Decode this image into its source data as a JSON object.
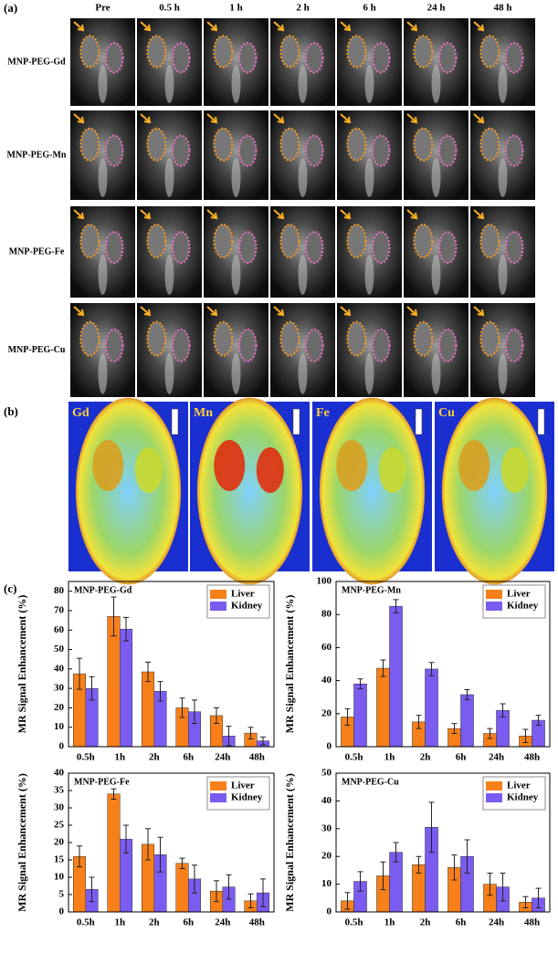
{
  "panel_a": {
    "label": "(a)",
    "columns": [
      "Pre",
      "0.5 h",
      "1 h",
      "2 h",
      "6 h",
      "24 h",
      "48 h"
    ],
    "rows": [
      "MNP-PEG-Gd",
      "MNP-PEG-Mn",
      "MNP-PEG-Fe",
      "MNP-PEG-Cu"
    ]
  },
  "panel_b": {
    "label": "(b)",
    "maps": [
      "Gd",
      "Mn",
      "Fe",
      "Cu"
    ]
  },
  "panel_c": {
    "label": "(c)"
  },
  "chart_data": [
    {
      "type": "bar",
      "title": "MNP-PEG-Gd",
      "y_label": "MR Signal Enhancement (%)",
      "categories": [
        "0.5h",
        "1h",
        "2h",
        "6h",
        "24h",
        "48h"
      ],
      "series": [
        {
          "name": "Liver",
          "color": "#f7801a",
          "values": [
            37.5,
            67,
            38.5,
            20,
            16,
            7
          ],
          "errors": [
            8,
            10,
            5,
            5,
            4,
            3
          ]
        },
        {
          "name": "Kidney",
          "color": "#7b5cf0",
          "values": [
            30,
            60.5,
            28.5,
            18,
            5.5,
            3
          ],
          "errors": [
            6,
            6,
            5,
            6,
            5,
            2
          ]
        }
      ],
      "ylim": [
        0,
        85
      ],
      "yticks": [
        0,
        10,
        20,
        30,
        40,
        50,
        60,
        70,
        80
      ],
      "legend": "upper right"
    },
    {
      "type": "bar",
      "title": "MNP-PEG-Mn",
      "y_label": "MR Signal Enhancement (%)",
      "categories": [
        "0.5h",
        "1h",
        "2h",
        "6h",
        "24h",
        "48h"
      ],
      "series": [
        {
          "name": "Liver",
          "color": "#f7801a",
          "values": [
            18,
            47.5,
            15,
            11,
            8,
            6.5
          ],
          "errors": [
            5,
            5,
            4,
            3,
            3,
            4
          ]
        },
        {
          "name": "Kidney",
          "color": "#7b5cf0",
          "values": [
            38,
            85,
            47,
            31.5,
            22,
            16
          ],
          "errors": [
            3,
            4,
            4,
            3,
            4,
            3
          ]
        }
      ],
      "ylim": [
        0,
        100
      ],
      "yticks": [
        0,
        20,
        40,
        60,
        80,
        100
      ],
      "legend": "upper right"
    },
    {
      "type": "bar",
      "title": "MNP-PEG-Fe",
      "y_label": "MR Signal Enhancement (%)",
      "categories": [
        "0.5h",
        "1h",
        "2h",
        "6h",
        "24h",
        "48h"
      ],
      "series": [
        {
          "name": "Liver",
          "color": "#f7801a",
          "values": [
            16,
            34,
            19.5,
            14,
            6,
            3.2
          ],
          "errors": [
            3,
            1.5,
            4.5,
            1.5,
            3,
            2
          ]
        },
        {
          "name": "Kidney",
          "color": "#7b5cf0",
          "values": [
            6.5,
            21,
            16.5,
            9.5,
            7.2,
            5.5
          ],
          "errors": [
            3.5,
            4,
            5,
            4,
            3.5,
            4
          ]
        }
      ],
      "ylim": [
        0,
        40
      ],
      "yticks": [
        0,
        5,
        10,
        15,
        20,
        25,
        30,
        35,
        40
      ],
      "legend": "upper right"
    },
    {
      "type": "bar",
      "title": "MNP-PEG-Cu",
      "y_label": "MR Signal Enhancement (%)",
      "categories": [
        "0.5h",
        "1h",
        "2h",
        "6h",
        "24h",
        "48h"
      ],
      "series": [
        {
          "name": "Liver",
          "color": "#f7801a",
          "values": [
            4,
            13,
            17,
            16,
            10,
            3.5
          ],
          "errors": [
            3,
            5,
            3,
            4.5,
            4,
            2
          ]
        },
        {
          "name": "Kidney",
          "color": "#7b5cf0",
          "values": [
            11,
            21.5,
            30.5,
            20,
            9,
            5
          ],
          "errors": [
            3.5,
            3.5,
            9,
            6,
            5,
            3.5
          ]
        }
      ],
      "ylim": [
        0,
        50
      ],
      "yticks": [
        0,
        10,
        20,
        30,
        40,
        50
      ],
      "legend": "upper right"
    }
  ]
}
